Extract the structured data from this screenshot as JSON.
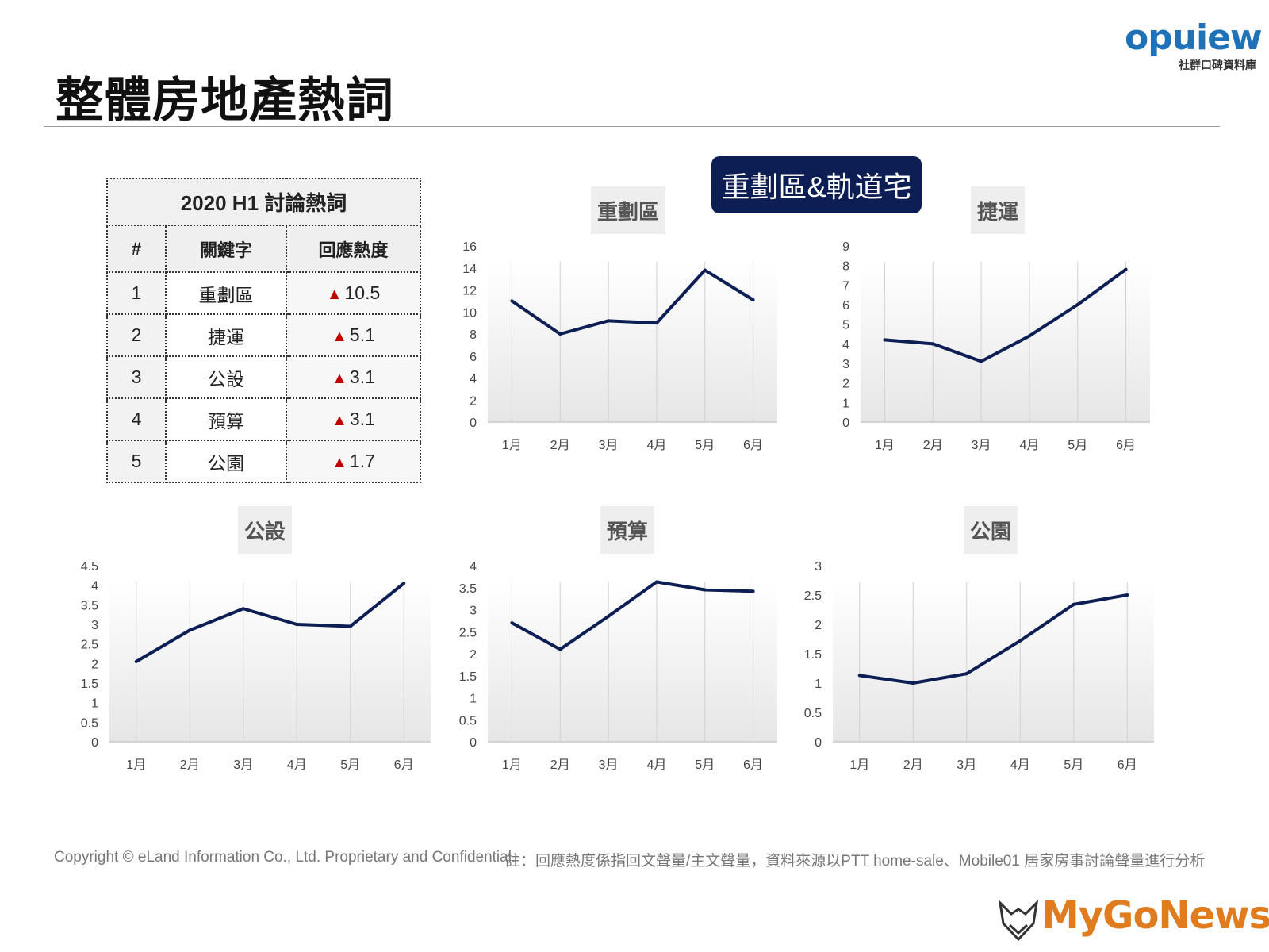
{
  "page": {
    "title": "整體房地產熱詞",
    "topic_badge": "重劃區&軌道宅"
  },
  "logo": {
    "word": "opuiew",
    "subtitle": "社群口碑資料庫"
  },
  "table": {
    "caption": "2020 H1 討論熱詞",
    "headers": [
      "#",
      "關鍵字",
      "回應熱度"
    ],
    "rows": [
      {
        "rank": "1",
        "keyword": "重劃區",
        "heat": "10.5"
      },
      {
        "rank": "2",
        "keyword": "捷運",
        "heat": "5.1"
      },
      {
        "rank": "3",
        "keyword": "公設",
        "heat": "3.1"
      },
      {
        "rank": "4",
        "keyword": "預算",
        "heat": "3.1"
      },
      {
        "rank": "5",
        "keyword": "公園",
        "heat": "1.7"
      }
    ],
    "up_symbol": "▲",
    "up_color": "#c00000"
  },
  "colors": {
    "line": "#0c1e54",
    "badge": "#0c1e54",
    "title_bg": "#eeeeee"
  },
  "chart_data": [
    {
      "type": "line",
      "title": "重劃區",
      "categories": [
        "1月",
        "2月",
        "3月",
        "4月",
        "5月",
        "6月"
      ],
      "values": [
        11.0,
        8.0,
        9.2,
        9.0,
        13.8,
        11.1
      ],
      "ylim": [
        0,
        16
      ],
      "yticks": [
        "0",
        "2",
        "4",
        "6",
        "8",
        "10",
        "12",
        "14",
        "16"
      ],
      "grid": "vertical"
    },
    {
      "type": "line",
      "title": "捷運",
      "categories": [
        "1月",
        "2月",
        "3月",
        "4月",
        "5月",
        "6月"
      ],
      "values": [
        4.2,
        4.0,
        3.1,
        4.4,
        6.0,
        7.8
      ],
      "ylim": [
        0,
        9
      ],
      "yticks": [
        "0",
        "1",
        "2",
        "3",
        "4",
        "5",
        "6",
        "7",
        "8",
        "9"
      ],
      "grid": "vertical"
    },
    {
      "type": "line",
      "title": "公設",
      "categories": [
        "1月",
        "2月",
        "3月",
        "4月",
        "5月",
        "6月"
      ],
      "values": [
        2.05,
        2.85,
        3.4,
        3.0,
        2.95,
        4.05
      ],
      "ylim": [
        0,
        4.5
      ],
      "yticks": [
        "0",
        "0.5",
        "1",
        "1.5",
        "2",
        "2.5",
        "3",
        "3.5",
        "4",
        "4.5"
      ],
      "grid": "vertical"
    },
    {
      "type": "line",
      "title": "預算",
      "categories": [
        "1月",
        "2月",
        "3月",
        "4月",
        "5月",
        "6月"
      ],
      "values": [
        2.7,
        2.1,
        2.85,
        3.63,
        3.45,
        3.42
      ],
      "ylim": [
        0,
        4
      ],
      "yticks": [
        "0",
        "0.5",
        "1",
        "1.5",
        "2",
        "2.5",
        "3",
        "3.5",
        "4"
      ],
      "grid": "vertical"
    },
    {
      "type": "line",
      "title": "公園",
      "categories": [
        "1月",
        "2月",
        "3月",
        "4月",
        "5月",
        "6月"
      ],
      "values": [
        1.13,
        1.0,
        1.16,
        1.72,
        2.34,
        2.5
      ],
      "ylim": [
        0,
        3
      ],
      "yticks": [
        "0",
        "0.5",
        "1",
        "1.5",
        "2",
        "2.5",
        "3"
      ],
      "grid": "vertical"
    }
  ],
  "footer": {
    "copyright": "Copyright © eLand Information Co., Ltd. Proprietary and Confidential.",
    "note": "註：回應熱度係指回文聲量/主文聲量，資料來源以PTT home-sale、Mobile01 居家房事討論聲量進行分析"
  },
  "brand": {
    "name": "MyGoNews"
  }
}
